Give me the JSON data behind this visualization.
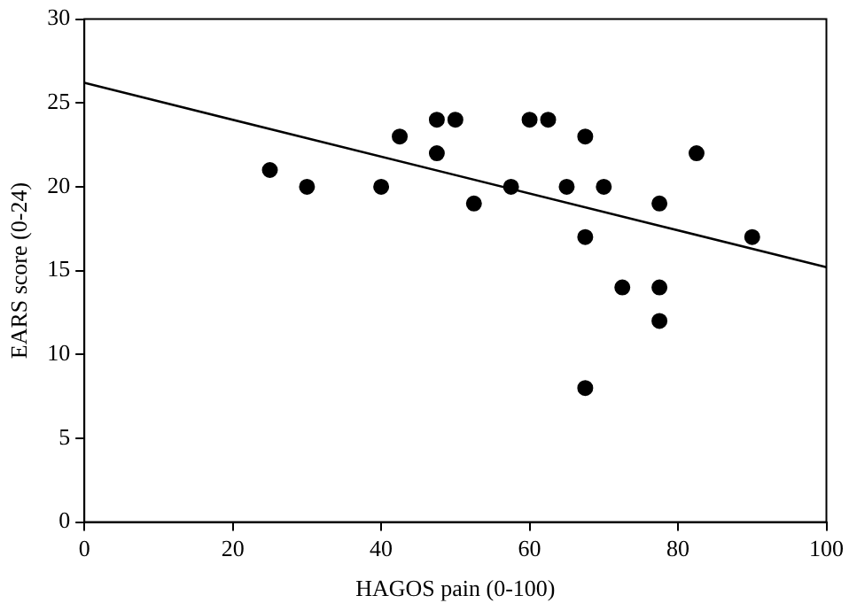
{
  "chart_data": {
    "type": "scatter",
    "xlabel": "HAGOS pain (0-100)",
    "ylabel": "EARS score (0-24)",
    "xlim": [
      0,
      100
    ],
    "xticks": [
      0,
      20,
      40,
      60,
      80,
      100
    ],
    "ylim": [
      0,
      30
    ],
    "yticks": [
      0,
      5,
      10,
      15,
      20,
      25,
      30
    ],
    "grid": false,
    "legend": false,
    "marker": "circle",
    "series": [
      {
        "type": "scatter",
        "color": "#000000",
        "x": [
          25,
          30,
          40,
          42.5,
          47.5,
          47.5,
          50,
          52.5,
          57.5,
          60,
          62.5,
          65,
          67.5,
          67.5,
          67.5,
          70,
          72.5,
          77.5,
          77.5,
          77.5,
          82.5,
          90
        ],
        "values": [
          21,
          20,
          20,
          23,
          24,
          22,
          24,
          19,
          20,
          24,
          24,
          20,
          23,
          17,
          8,
          20,
          14,
          19,
          14,
          12,
          22,
          17
        ]
      },
      {
        "type": "line",
        "color": "#000000",
        "x": [
          0,
          100
        ],
        "values": [
          26.2,
          15.2
        ],
        "marker": "none",
        "line_style": "solid"
      }
    ]
  }
}
